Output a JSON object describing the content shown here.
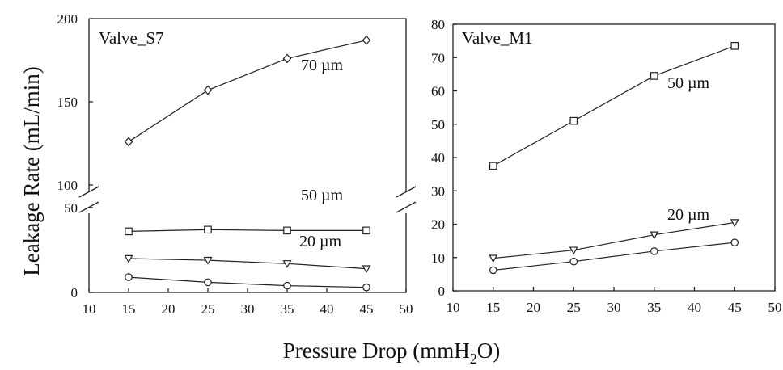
{
  "figure": {
    "ylabel": "Leakage Rate (mL/min)",
    "xlabel_pre": "Pressure Drop (mmH",
    "xlabel_sub": "2",
    "xlabel_post": "O)"
  },
  "chart_data": [
    {
      "type": "line",
      "title": "Valve_S7",
      "x": [
        15,
        25,
        35,
        45
      ],
      "xlim": [
        10,
        50
      ],
      "xticks": [
        "10",
        "15",
        "20",
        "25",
        "30",
        "35",
        "40",
        "45",
        "50"
      ],
      "ylim_lower": [
        0,
        50
      ],
      "ylim_upper": [
        100,
        200
      ],
      "yticks_lower": [
        "0",
        "50"
      ],
      "yticks_upper": [
        "100",
        "150",
        "200"
      ],
      "axis_break": true,
      "series": [
        {
          "name": "70 µm",
          "marker": "diamond",
          "values": [
            126,
            157,
            176,
            187
          ]
        },
        {
          "name": "50 µm",
          "marker": "square",
          "values": [
            36,
            37,
            36.5,
            36.5
          ]
        },
        {
          "name": "20 µm",
          "marker": "triangle-down",
          "values": [
            20,
            19,
            17,
            14
          ]
        },
        {
          "name": "",
          "marker": "circle",
          "values": [
            9,
            6,
            4,
            3
          ]
        }
      ],
      "series_labels": [
        "70 µm",
        "50 µm",
        "20 µm"
      ]
    },
    {
      "type": "line",
      "title": "Valve_M1",
      "x": [
        15,
        25,
        35,
        45
      ],
      "xlim": [
        10,
        50
      ],
      "ylim": [
        0,
        80
      ],
      "xticks": [
        "10",
        "15",
        "20",
        "25",
        "30",
        "35",
        "40",
        "45",
        "50"
      ],
      "yticks": [
        "0",
        "10",
        "20",
        "30",
        "40",
        "50",
        "60",
        "70",
        "80"
      ],
      "series": [
        {
          "name": "50 µm",
          "marker": "square",
          "values": [
            37.5,
            51,
            64.5,
            73.5
          ]
        },
        {
          "name": "20 µm",
          "marker": "triangle-down",
          "values": [
            9.8,
            12.2,
            16.8,
            20.5
          ]
        },
        {
          "name": "",
          "marker": "circle",
          "values": [
            6.2,
            8.8,
            11.9,
            14.5
          ]
        }
      ],
      "series_labels": [
        "50 µm",
        "20 µm"
      ]
    }
  ]
}
